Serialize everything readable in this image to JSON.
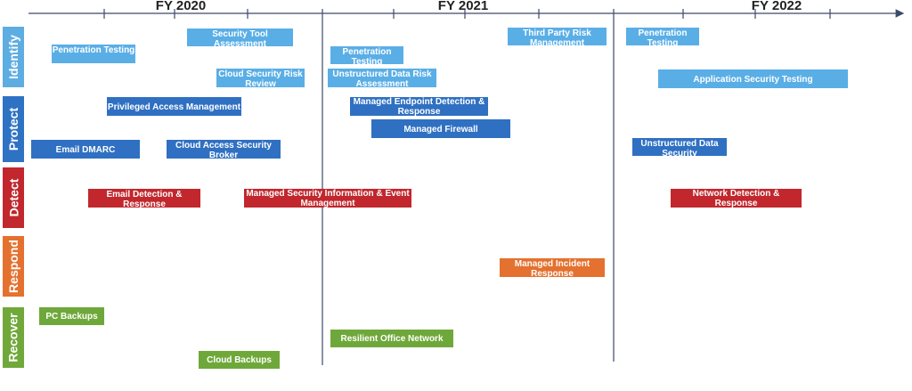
{
  "timeline": {
    "years": [
      "FY 2020",
      "FY 2021",
      "FY 2022"
    ]
  },
  "lanes": [
    {
      "label": "Identify",
      "items": [
        "Penetration Testing",
        "Security Tool Assessment",
        "Cloud Security Risk Review",
        "Penetration Testing",
        "Unstructured Data Risk Assessment",
        "Third Party Risk Management",
        "Penetration Testing",
        "Application Security Testing"
      ]
    },
    {
      "label": "Protect",
      "items": [
        "Privileged Access Management",
        "Email DMARC",
        "Cloud Access Security Broker",
        "Managed Endpoint Detection & Response",
        "Managed Firewall",
        "Unstructured Data Security"
      ]
    },
    {
      "label": "Detect",
      "items": [
        "Email Detection & Response",
        "Managed Security Information & Event Management",
        "Network Detection & Response"
      ]
    },
    {
      "label": "Respond",
      "items": [
        "Managed Incident Response"
      ]
    },
    {
      "label": "Recover",
      "items": [
        "PC Backups",
        "Resilient Office Network",
        "Cloud Backups"
      ]
    }
  ]
}
